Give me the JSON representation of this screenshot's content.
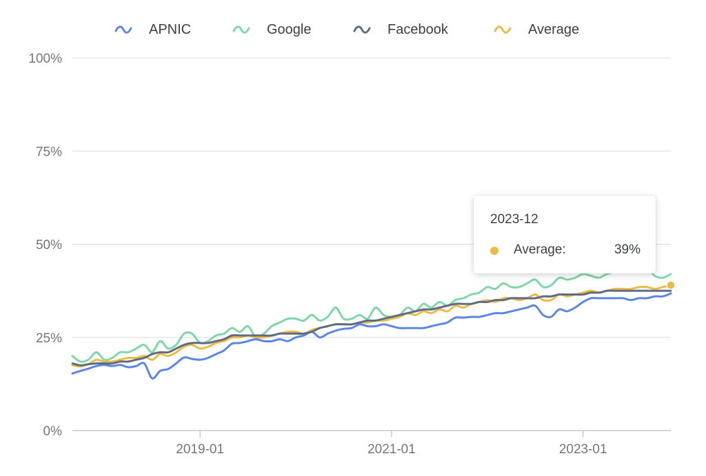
{
  "colors": {
    "apnic": "#5b86e5",
    "google": "#7fd6a8",
    "facebook": "#5f6b82",
    "average": "#ebbb45",
    "grid": "#dadce0",
    "axis": "#bdbdbd",
    "tick_text": "#757575"
  },
  "legend": {
    "items": [
      {
        "label": "APNIC",
        "icon": "wave-icon",
        "color": "#5b86e5"
      },
      {
        "label": "Google",
        "icon": "wave-icon",
        "color": "#7fd6a8"
      },
      {
        "label": "Facebook",
        "icon": "wave-icon",
        "color": "#5f6b82"
      },
      {
        "label": "Average",
        "icon": "wave-icon",
        "color": "#ebbb45"
      }
    ]
  },
  "tooltip": {
    "title": "2023-12",
    "series": "Average:",
    "value": "39%"
  },
  "chart_data": {
    "type": "line",
    "title": "",
    "xlabel": "",
    "ylabel": "",
    "xlim": [
      "2017-09",
      "2023-12"
    ],
    "ylim": [
      0,
      100
    ],
    "y_ticks": [
      "0%",
      "25%",
      "50%",
      "75%",
      "100%"
    ],
    "x_ticks": [
      "2019-01",
      "2021-01",
      "2023-01"
    ],
    "grid": true,
    "legend_position": "top-center",
    "x": [
      "2017-09",
      "2017-10",
      "2017-11",
      "2017-12",
      "2018-01",
      "2018-02",
      "2018-03",
      "2018-04",
      "2018-05",
      "2018-06",
      "2018-07",
      "2018-08",
      "2018-09",
      "2018-10",
      "2018-11",
      "2018-12",
      "2019-01",
      "2019-02",
      "2019-03",
      "2019-04",
      "2019-05",
      "2019-06",
      "2019-07",
      "2019-08",
      "2019-09",
      "2019-10",
      "2019-11",
      "2019-12",
      "2020-01",
      "2020-02",
      "2020-03",
      "2020-04",
      "2020-05",
      "2020-06",
      "2020-07",
      "2020-08",
      "2020-09",
      "2020-10",
      "2020-11",
      "2020-12",
      "2021-01",
      "2021-02",
      "2021-03",
      "2021-04",
      "2021-05",
      "2021-06",
      "2021-07",
      "2021-08",
      "2021-09",
      "2021-10",
      "2021-11",
      "2021-12",
      "2022-01",
      "2022-02",
      "2022-03",
      "2022-04",
      "2022-05",
      "2022-06",
      "2022-07",
      "2022-08",
      "2022-09",
      "2022-10",
      "2022-11",
      "2022-12",
      "2023-01",
      "2023-02",
      "2023-03",
      "2023-04",
      "2023-05",
      "2023-06",
      "2023-07",
      "2023-08",
      "2023-09",
      "2023-10",
      "2023-11",
      "2023-12"
    ],
    "series": [
      {
        "name": "APNIC",
        "values": [
          15.3,
          16.0,
          16.6,
          17.3,
          17.6,
          17.3,
          17.6,
          17.0,
          17.3,
          18.0,
          14.0,
          16.0,
          16.5,
          18.0,
          19.6,
          19.2,
          19.0,
          19.5,
          20.5,
          21.5,
          23.3,
          23.5,
          24.0,
          24.5,
          24.0,
          24.0,
          24.5,
          24.0,
          25.0,
          25.5,
          26.5,
          25.0,
          26.0,
          26.8,
          27.3,
          27.5,
          28.5,
          28.0,
          28.0,
          28.5,
          28.0,
          27.5,
          27.5,
          27.5,
          27.5,
          28.0,
          28.5,
          29.0,
          30.3,
          30.3,
          30.5,
          30.5,
          31.0,
          31.5,
          31.5,
          32.0,
          32.5,
          33.0,
          33.5,
          31.0,
          30.5,
          32.5,
          32.0,
          33.0,
          34.5,
          35.5,
          35.5,
          35.5,
          35.5,
          35.5,
          35.0,
          35.5,
          35.5,
          36.0,
          36.0,
          36.8
        ]
      },
      {
        "name": "Google",
        "values": [
          20.0,
          18.5,
          19.0,
          21.0,
          19.0,
          19.5,
          21.0,
          21.0,
          22.0,
          23.0,
          21.0,
          24.0,
          22.0,
          23.0,
          26.0,
          26.0,
          23.5,
          24.0,
          25.5,
          26.0,
          27.5,
          26.5,
          28.0,
          25.0,
          26.0,
          28.0,
          29.0,
          30.0,
          30.0,
          29.5,
          31.0,
          29.5,
          30.5,
          33.0,
          30.0,
          30.0,
          31.0,
          30.0,
          33.0,
          31.0,
          30.5,
          31.0,
          33.0,
          32.0,
          34.0,
          33.0,
          34.5,
          33.5,
          35.0,
          35.5,
          36.5,
          37.0,
          38.5,
          38.0,
          39.5,
          38.5,
          38.5,
          39.5,
          40.5,
          38.5,
          39.0,
          41.0,
          40.5,
          41.0,
          42.0,
          41.5,
          41.0,
          42.0,
          42.5,
          42.5,
          42.5,
          43.0,
          43.5,
          41.5,
          41.0,
          42.0
        ]
      },
      {
        "name": "Facebook",
        "values": [
          18.0,
          17.5,
          17.8,
          18.0,
          18.0,
          18.0,
          18.5,
          18.5,
          19.0,
          19.5,
          20.5,
          21.0,
          21.0,
          22.0,
          23.0,
          23.5,
          23.5,
          23.5,
          24.0,
          24.5,
          25.5,
          25.5,
          25.5,
          25.5,
          25.5,
          25.5,
          26.0,
          26.0,
          26.0,
          26.0,
          26.5,
          27.5,
          28.0,
          28.5,
          28.5,
          28.5,
          29.0,
          29.5,
          29.5,
          30.0,
          30.5,
          31.0,
          31.5,
          32.0,
          32.5,
          32.5,
          33.0,
          33.5,
          34.0,
          34.0,
          34.0,
          34.5,
          34.5,
          35.0,
          35.0,
          35.5,
          35.5,
          35.5,
          35.5,
          36.0,
          36.0,
          36.5,
          36.5,
          36.5,
          36.5,
          37.0,
          37.0,
          37.5,
          37.5,
          37.5,
          37.5,
          37.5,
          37.5,
          37.5,
          37.5,
          37.5
        ]
      },
      {
        "name": "Average",
        "values": [
          17.5,
          17.2,
          17.8,
          19.0,
          18.5,
          18.5,
          19.0,
          19.5,
          19.5,
          20.0,
          19.0,
          20.5,
          20.0,
          21.0,
          22.5,
          23.0,
          22.0,
          22.5,
          23.5,
          24.0,
          25.0,
          25.0,
          25.5,
          25.0,
          25.0,
          25.5,
          26.0,
          26.5,
          26.5,
          26.0,
          27.0,
          27.5,
          28.0,
          28.5,
          28.5,
          28.5,
          29.0,
          29.0,
          29.5,
          29.5,
          30.0,
          30.5,
          31.5,
          31.0,
          32.0,
          31.5,
          32.5,
          32.0,
          33.5,
          33.0,
          34.0,
          34.5,
          35.0,
          34.5,
          35.5,
          35.5,
          35.0,
          35.5,
          36.5,
          35.0,
          35.0,
          36.5,
          36.0,
          36.5,
          37.0,
          37.5,
          37.0,
          37.5,
          38.0,
          38.0,
          38.0,
          38.5,
          38.5,
          38.0,
          38.5,
          39.0
        ]
      }
    ]
  }
}
